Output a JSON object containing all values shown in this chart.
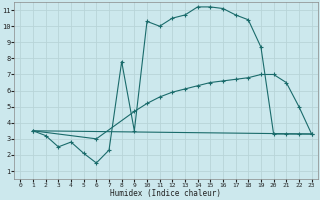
{
  "xlabel": "Humidex (Indice chaleur)",
  "bg_color": "#cce8ed",
  "grid_color": "#b8d4d8",
  "line_color": "#1a6b6b",
  "xlim": [
    -0.5,
    23.5
  ],
  "ylim": [
    0.5,
    11.5
  ],
  "yticks": [
    1,
    2,
    3,
    4,
    5,
    6,
    7,
    8,
    9,
    10,
    11
  ],
  "xticks": [
    0,
    1,
    2,
    3,
    4,
    5,
    6,
    7,
    8,
    9,
    10,
    11,
    12,
    13,
    14,
    15,
    16,
    17,
    18,
    19,
    20,
    21,
    22,
    23
  ],
  "line1_x": [
    1,
    2,
    3,
    4,
    5,
    6,
    7,
    8,
    9,
    10,
    11,
    12,
    13,
    14,
    15,
    16,
    17,
    18,
    19,
    20,
    21,
    22,
    23
  ],
  "line1_y": [
    3.5,
    3.2,
    2.5,
    2.8,
    2.1,
    1.5,
    2.3,
    7.8,
    3.5,
    10.3,
    10.0,
    10.5,
    10.7,
    11.2,
    11.2,
    11.1,
    10.7,
    10.4,
    8.7,
    3.3,
    3.3,
    3.3,
    3.3
  ],
  "line2_x": [
    1,
    6,
    9,
    10,
    11,
    12,
    13,
    14,
    15,
    16,
    17,
    18,
    19,
    20,
    21,
    22,
    23
  ],
  "line2_y": [
    3.5,
    3.0,
    4.7,
    5.2,
    5.6,
    5.9,
    6.1,
    6.3,
    6.5,
    6.6,
    6.7,
    6.8,
    7.0,
    7.0,
    6.5,
    5.0,
    3.3
  ],
  "line3_x": [
    1,
    23
  ],
  "line3_y": [
    3.5,
    3.3
  ],
  "marker1": true,
  "marker2": true,
  "marker3": false
}
